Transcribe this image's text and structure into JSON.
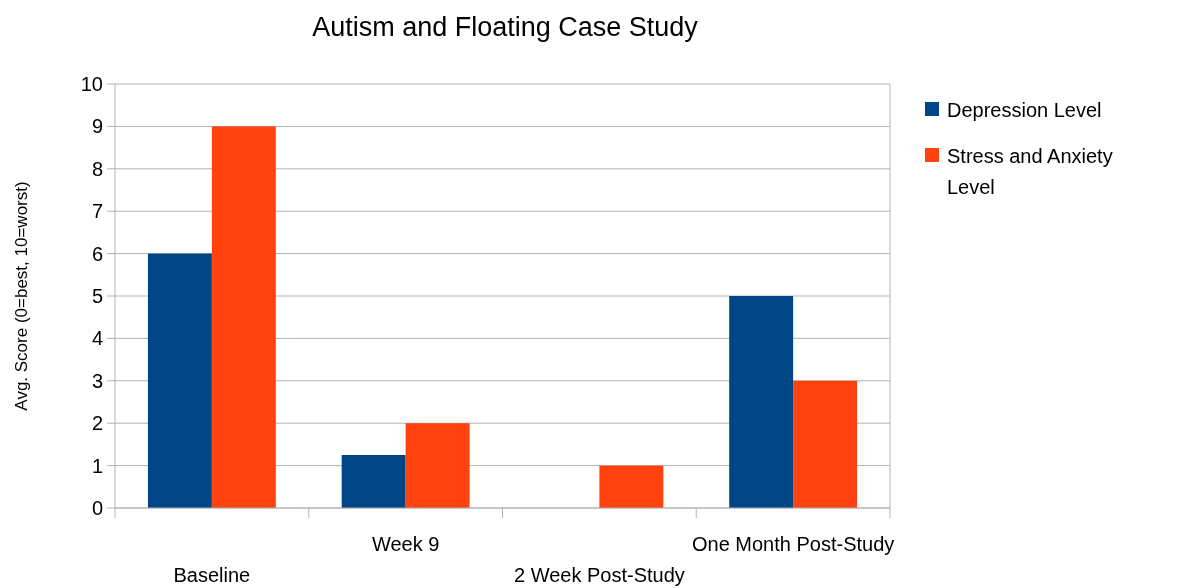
{
  "chart_data": {
    "type": "bar",
    "title": "Autism and Floating Case Study",
    "ylabel": "Avg. Score (0=best, 10=worst)",
    "categories": [
      "Baseline",
      "Week 9",
      "2 Week Post-Study",
      "One Month Post-Study"
    ],
    "series": [
      {
        "name": "Depression Level",
        "color": "#004586",
        "values": [
          6,
          1.25,
          0,
          5
        ]
      },
      {
        "name": "Stress and Anxiety Level",
        "color": "#ff420e",
        "values": [
          9,
          2,
          1,
          3
        ]
      }
    ],
    "ylim": [
      0,
      10
    ],
    "yticks": [
      0,
      1,
      2,
      3,
      4,
      5,
      6,
      7,
      8,
      9,
      10
    ],
    "grid": "y",
    "legend": "right"
  }
}
